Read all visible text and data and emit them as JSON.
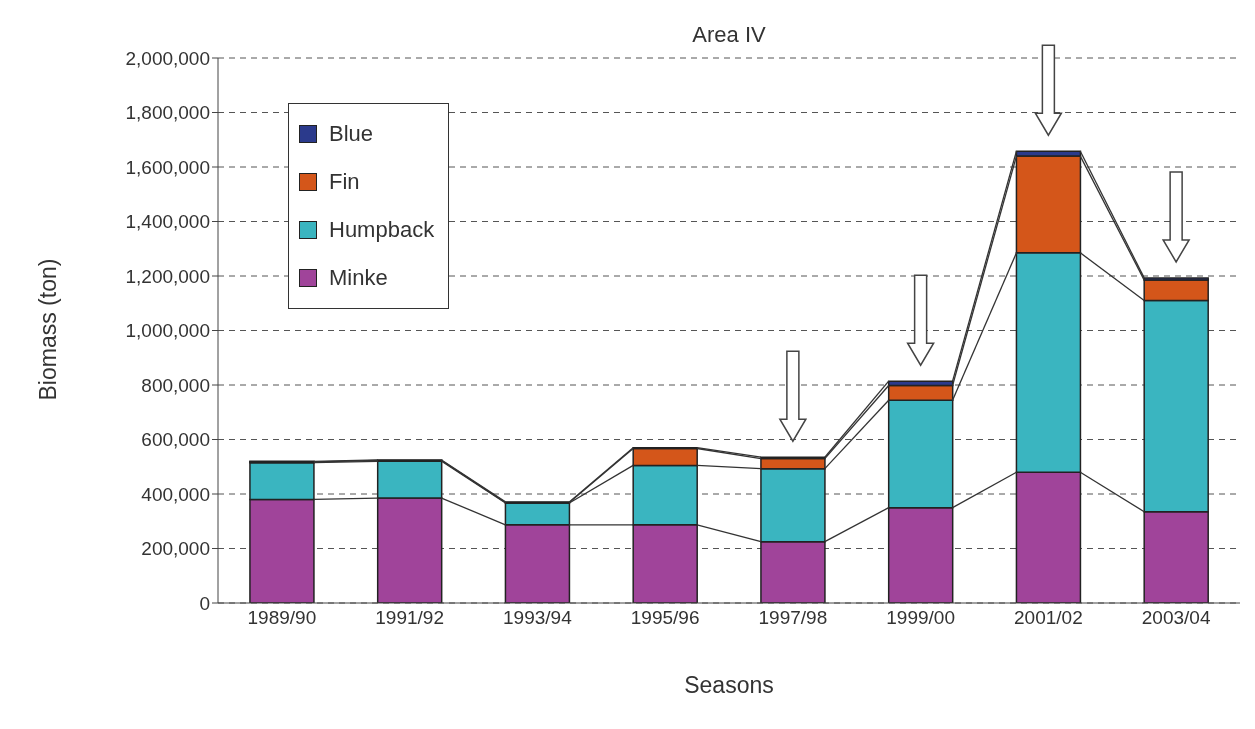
{
  "chart_data": {
    "type": "bar",
    "title": "Area IV",
    "xlabel": "Seasons",
    "ylabel": "Biomass (ton)",
    "categories": [
      "1989/90",
      "1991/92",
      "1993/94",
      "1995/96",
      "1997/98",
      "1999/00",
      "2001/02",
      "2003/04"
    ],
    "stacked": true,
    "series": [
      {
        "name": "Minke",
        "color": "#a0449a",
        "values": [
          380000,
          385000,
          287000,
          287000,
          225000,
          350000,
          480000,
          335000
        ]
      },
      {
        "name": "Humpback",
        "color": "#3ab5c0",
        "values": [
          135000,
          135000,
          80000,
          218000,
          268000,
          394000,
          805000,
          775000
        ]
      },
      {
        "name": "Fin",
        "color": "#d4561a",
        "values": [
          3000,
          3000,
          2000,
          62000,
          37000,
          54000,
          355000,
          75000
        ]
      },
      {
        "name": "Blue",
        "color": "#2b3a8c",
        "values": [
          2000,
          2000,
          2000,
          3000,
          5000,
          16000,
          18000,
          8000
        ]
      }
    ],
    "ylim": [
      0,
      2000000
    ],
    "yticks": [
      {
        "value": 0,
        "label": "0"
      },
      {
        "value": 200000,
        "label": "200,000"
      },
      {
        "value": 400000,
        "label": "400,000"
      },
      {
        "value": 600000,
        "label": "600,000"
      },
      {
        "value": 800000,
        "label": "800,000"
      },
      {
        "value": 1000000,
        "label": "1,000,000"
      },
      {
        "value": 1200000,
        "label": "1,200,000"
      },
      {
        "value": 1400000,
        "label": "1,400,000"
      },
      {
        "value": 1600000,
        "label": "1,600,000"
      },
      {
        "value": 1800000,
        "label": "1,800,000"
      },
      {
        "value": 2000000,
        "label": "2,000,000"
      }
    ],
    "grid": "y",
    "legend": "top left"
  }
}
